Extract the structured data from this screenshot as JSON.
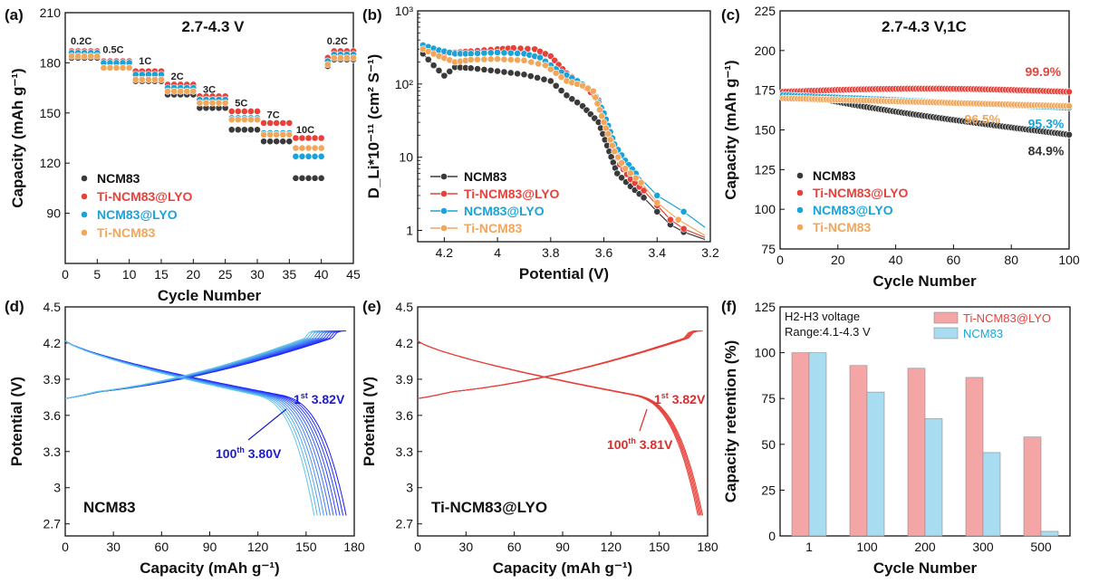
{
  "colors": {
    "ncm83": "#3a3a3a",
    "ti_ncm83_lyo": "#e8413a",
    "ncm83_lyo": "#1aa3d9",
    "ti_ncm83": "#f2a65a",
    "bar_ti": "#f4a6a6",
    "bar_ncm": "#a8dcf0",
    "blue_text": "#1c1ccc",
    "red_text": "#e02a2a"
  },
  "legend_names": [
    "NCM83",
    "Ti-NCM83@LYO",
    "NCM83@LYO",
    "Ti-NCM83"
  ],
  "chart_data": [
    {
      "panel": "(a)",
      "type": "scatter",
      "title": "2.7-4.3 V",
      "xlabel": "Cycle Number",
      "ylabel": "Capacity (mAh g⁻¹)",
      "xlim": [
        0,
        45
      ],
      "ylim": [
        60,
        210
      ],
      "xticks": [
        0,
        5,
        10,
        15,
        20,
        25,
        30,
        35,
        40,
        45
      ],
      "yticks": [
        90,
        120,
        150,
        180,
        210
      ],
      "rate_labels": [
        {
          "text": "0.2C",
          "x": 2.5,
          "y": 191
        },
        {
          "text": "0.5C",
          "x": 7.5,
          "y": 186
        },
        {
          "text": "1C",
          "x": 12.5,
          "y": 179
        },
        {
          "text": "2C",
          "x": 17.5,
          "y": 170
        },
        {
          "text": "3C",
          "x": 22.5,
          "y": 162
        },
        {
          "text": "5C",
          "x": 27.5,
          "y": 154
        },
        {
          "text": "7C",
          "x": 32.5,
          "y": 147
        },
        {
          "text": "10C",
          "x": 37.5,
          "y": 138
        },
        {
          "text": "0.2C",
          "x": 42.5,
          "y": 191
        }
      ],
      "series": [
        {
          "name": "NCM83",
          "steps": [
            {
              "x0": 1,
              "y": 183
            },
            {
              "x0": 6,
              "y": 177
            },
            {
              "x0": 11,
              "y": 169
            },
            {
              "x0": 16,
              "y": 161
            },
            {
              "x0": 21,
              "y": 153
            },
            {
              "x0": 26,
              "y": 140
            },
            {
              "x0": 31,
              "y": 133
            },
            {
              "x0": 36,
              "y": 111
            },
            {
              "x0": 41,
              "y": 182
            }
          ]
        },
        {
          "name": "Ti-NCM83@LYO",
          "steps": [
            {
              "x0": 1,
              "y": 187
            },
            {
              "x0": 6,
              "y": 181
            },
            {
              "x0": 11,
              "y": 175
            },
            {
              "x0": 16,
              "y": 167
            },
            {
              "x0": 21,
              "y": 160
            },
            {
              "x0": 26,
              "y": 151
            },
            {
              "x0": 31,
              "y": 144
            },
            {
              "x0": 36,
              "y": 135
            },
            {
              "x0": 41,
              "y": 187
            }
          ]
        },
        {
          "name": "NCM83@LYO",
          "steps": [
            {
              "x0": 1,
              "y": 186
            },
            {
              "x0": 6,
              "y": 180
            },
            {
              "x0": 11,
              "y": 173
            },
            {
              "x0": 16,
              "y": 165
            },
            {
              "x0": 21,
              "y": 158
            },
            {
              "x0": 26,
              "y": 147
            },
            {
              "x0": 31,
              "y": 138
            },
            {
              "x0": 36,
              "y": 124
            },
            {
              "x0": 41,
              "y": 185
            }
          ]
        },
        {
          "name": "Ti-NCM83",
          "steps": [
            {
              "x0": 1,
              "y": 184
            },
            {
              "x0": 6,
              "y": 177
            },
            {
              "x0": 11,
              "y": 170
            },
            {
              "x0": 16,
              "y": 163
            },
            {
              "x0": 21,
              "y": 156
            },
            {
              "x0": 26,
              "y": 146
            },
            {
              "x0": 31,
              "y": 137
            },
            {
              "x0": 36,
              "y": 129
            },
            {
              "x0": 41,
              "y": 183
            }
          ]
        }
      ]
    },
    {
      "panel": "(b)",
      "type": "line",
      "xlabel": "Potential (V)",
      "ylabel": "D_Li*10⁻¹¹ (cm² S⁻¹)",
      "xlim": [
        4.3,
        3.2
      ],
      "ylim": [
        0.7,
        1000
      ],
      "yscale": "log",
      "xticks": [
        4.2,
        4.0,
        3.8,
        3.6,
        3.4,
        3.2
      ],
      "yticks": [
        1,
        10,
        100,
        1000
      ],
      "series": [
        {
          "name": "NCM83",
          "points": [
            [
              4.28,
              260
            ],
            [
              4.24,
              180
            ],
            [
              4.2,
              130
            ],
            [
              4.16,
              170
            ],
            [
              4.1,
              165
            ],
            [
              4.0,
              150
            ],
            [
              3.9,
              135
            ],
            [
              3.8,
              110
            ],
            [
              3.74,
              70
            ],
            [
              3.68,
              50
            ],
            [
              3.62,
              30
            ],
            [
              3.58,
              12
            ],
            [
              3.55,
              6
            ],
            [
              3.5,
              4
            ],
            [
              3.45,
              2.8
            ],
            [
              3.4,
              1.8
            ],
            [
              3.35,
              1.2
            ],
            [
              3.3,
              0.95
            ],
            [
              3.22,
              0.75
            ]
          ]
        },
        {
          "name": "Ti-NCM83@LYO",
          "points": [
            [
              4.28,
              330
            ],
            [
              4.22,
              260
            ],
            [
              4.16,
              270
            ],
            [
              4.1,
              280
            ],
            [
              4.0,
              300
            ],
            [
              3.94,
              310
            ],
            [
              3.86,
              300
            ],
            [
              3.8,
              240
            ],
            [
              3.74,
              140
            ],
            [
              3.68,
              100
            ],
            [
              3.62,
              60
            ],
            [
              3.58,
              22
            ],
            [
              3.54,
              8
            ],
            [
              3.5,
              5
            ],
            [
              3.45,
              3.5
            ],
            [
              3.4,
              2.2
            ],
            [
              3.35,
              1.4
            ],
            [
              3.3,
              1.05
            ],
            [
              3.22,
              0.8
            ]
          ]
        },
        {
          "name": "NCM83@LYO",
          "points": [
            [
              4.28,
              340
            ],
            [
              4.22,
              290
            ],
            [
              4.16,
              260
            ],
            [
              4.1,
              260
            ],
            [
              4.0,
              270
            ],
            [
              3.9,
              260
            ],
            [
              3.84,
              230
            ],
            [
              3.78,
              160
            ],
            [
              3.7,
              110
            ],
            [
              3.64,
              80
            ],
            [
              3.6,
              40
            ],
            [
              3.56,
              15
            ],
            [
              3.52,
              9
            ],
            [
              3.48,
              6
            ],
            [
              3.4,
              3
            ],
            [
              3.3,
              1.8
            ],
            [
              3.22,
              1.1
            ]
          ]
        },
        {
          "name": "Ti-NCM83",
          "points": [
            [
              4.28,
              300
            ],
            [
              4.22,
              240
            ],
            [
              4.16,
              200
            ],
            [
              4.1,
              215
            ],
            [
              4.0,
              220
            ],
            [
              3.9,
              210
            ],
            [
              3.82,
              180
            ],
            [
              3.74,
              110
            ],
            [
              3.68,
              95
            ],
            [
              3.64,
              80
            ],
            [
              3.6,
              30
            ],
            [
              3.56,
              12
            ],
            [
              3.52,
              7
            ],
            [
              3.46,
              4.5
            ],
            [
              3.4,
              2.4
            ],
            [
              3.32,
              1.4
            ],
            [
              3.22,
              0.85
            ]
          ]
        }
      ]
    },
    {
      "panel": "(c)",
      "type": "scatter",
      "title": "2.7-4.3 V,1C",
      "xlabel": "Cycle Number",
      "ylabel": "Capacity (mAh g⁻¹)",
      "xlim": [
        0,
        100
      ],
      "ylim": [
        75,
        225
      ],
      "xticks": [
        0,
        20,
        40,
        60,
        80,
        100
      ],
      "yticks": [
        75,
        100,
        125,
        150,
        175,
        200,
        225
      ],
      "annotations": [
        {
          "text": "99.9%",
          "x": 91,
          "y": 184,
          "series": "Ti-NCM83@LYO"
        },
        {
          "text": "96.5%",
          "x": 70,
          "y": 154,
          "series": "Ti-NCM83"
        },
        {
          "text": "95.3%",
          "x": 92,
          "y": 151,
          "series": "NCM83@LYO"
        },
        {
          "text": "84.9%",
          "x": 92,
          "y": 134,
          "series": "NCM83"
        }
      ],
      "series": [
        {
          "name": "NCM83",
          "start": 173,
          "end": 147
        },
        {
          "name": "Ti-NCM83@LYO",
          "start": 174,
          "end": 174
        },
        {
          "name": "NCM83@LYO",
          "start": 172,
          "end": 164
        },
        {
          "name": "Ti-NCM83",
          "start": 170,
          "end": 165
        }
      ]
    },
    {
      "panel": "(d)",
      "type": "line",
      "label": "NCM83",
      "xlabel": "Capacity (mAh g⁻¹)",
      "ylabel": "Potential (V)",
      "xlim": [
        0,
        180
      ],
      "ylim": [
        2.6,
        4.5
      ],
      "xticks": [
        0,
        30,
        60,
        90,
        120,
        150,
        180
      ],
      "yticks": [
        2.7,
        3.0,
        3.3,
        3.6,
        3.9,
        4.2,
        4.5
      ],
      "ann_first": "3.82V",
      "ann_last": "3.80V",
      "n_curves": 11,
      "charge_end_capacity": [
        175,
        157
      ],
      "discharge_end_capacity": [
        175,
        155
      ]
    },
    {
      "panel": "(e)",
      "type": "line",
      "label": "Ti-NCM83@LYO",
      "xlabel": "Capacity (mAh g⁻¹)",
      "ylabel": "Potential (V)",
      "xlim": [
        0,
        180
      ],
      "ylim": [
        2.6,
        4.5
      ],
      "xticks": [
        0,
        30,
        60,
        90,
        120,
        150,
        180
      ],
      "yticks": [
        2.7,
        3.0,
        3.3,
        3.6,
        3.9,
        4.2,
        4.5
      ],
      "ann_first": "3.82V",
      "ann_last": "3.81V",
      "n_curves": 5,
      "charge_end_capacity": [
        177,
        174
      ],
      "discharge_end_capacity": [
        177,
        174
      ]
    },
    {
      "panel": "(f)",
      "type": "bar",
      "note_line1": "H2-H3 voltage",
      "note_line2": "Range:4.1-4.3 V",
      "xlabel": "Cycle Number",
      "ylabel": "Capacity retention (%)",
      "ylim": [
        0,
        125
      ],
      "yticks": [
        0,
        25,
        50,
        75,
        100,
        125
      ],
      "categories": [
        "1",
        "100",
        "200",
        "300",
        "500"
      ],
      "series": [
        {
          "name": "Ti-NCM83@LYO",
          "values": [
            100,
            93,
            91.5,
            86.5,
            54
          ]
        },
        {
          "name": "NCM83",
          "values": [
            100,
            78.5,
            64,
            45.5,
            2.5
          ]
        }
      ]
    }
  ]
}
